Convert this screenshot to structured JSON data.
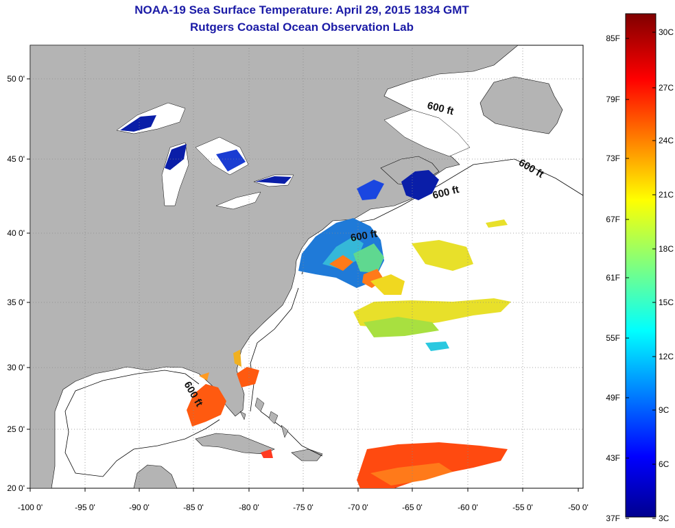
{
  "title": {
    "line1": "NOAA-19 Sea Surface Temperature:  April 29, 2015 1834 GMT",
    "line2": "Rutgers Coastal Ocean Observation Lab"
  },
  "axes": {
    "x_ticks": [
      "-100 0'",
      "-95 0'",
      "-90 0'",
      "-85 0'",
      "-80 0'",
      "-75 0'",
      "-70 0'",
      "-65 0'",
      "-60 0'",
      "-55 0'",
      "-50 0'"
    ],
    "y_ticks": [
      "50 0'",
      "45 0'",
      "40 0'",
      "35 0'",
      "30 0'",
      "25 0'",
      "20 0'"
    ]
  },
  "annotations": [
    "600 ft",
    "600 ft",
    "600 ft",
    "600 ft",
    "600 ft"
  ],
  "colorbar": {
    "fahrenheit": [
      "85F",
      "79F",
      "73F",
      "67F",
      "61F",
      "55F",
      "49F",
      "43F",
      "37F"
    ],
    "celsius": [
      "30C",
      "27C",
      "24C",
      "21C",
      "18C",
      "15C",
      "12C",
      "9C",
      "6C",
      "3C"
    ]
  },
  "colors": {
    "land": "#b4b4b4",
    "ocean": "#ffffff",
    "title": "#1a1aa6",
    "grid": "#888888"
  }
}
